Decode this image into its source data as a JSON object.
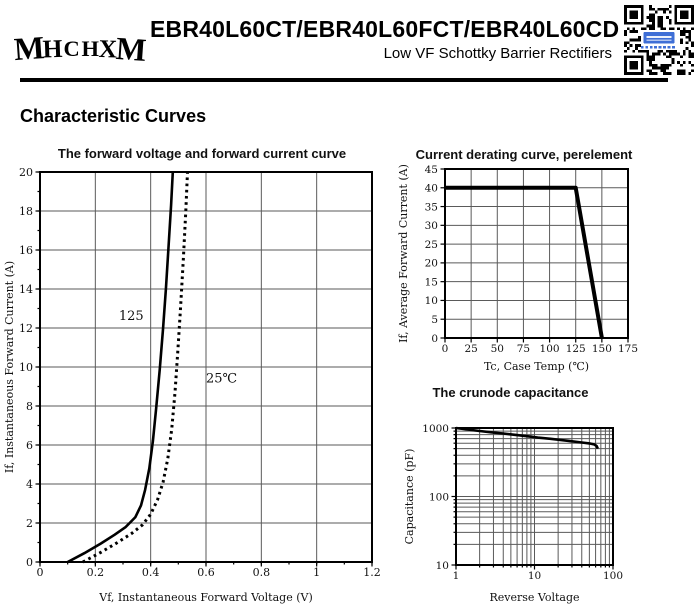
{
  "header": {
    "logo_text": "MHCHXM",
    "title": "EBR40L60CT/EBR40L60FCT/EBR40L60CD",
    "subtitle": "Low VF Schottky Barrier Rectifiers"
  },
  "section_title": "Characteristic Curves",
  "colors": {
    "text": "#111111",
    "grid": "#5a5a5a",
    "curve": "#000000",
    "qr_logo_blue": "#3f6fd6"
  },
  "chart_data": [
    {
      "id": "fwd",
      "type": "line",
      "title": "The forward voltage and forward current curve",
      "xlabel": "Vf, Instantaneous Forward Voltage (V)",
      "ylabel": "If, Instantaneous Forward Current (A)",
      "xscale": "linear",
      "yscale": "linear",
      "xlim": [
        0,
        1.2
      ],
      "ylim": [
        0,
        20
      ],
      "xticks": [
        0,
        0.2,
        0.4,
        0.6,
        0.8,
        1,
        1.2
      ],
      "xtick_labels": [
        "0",
        "0.2",
        "0.4",
        "0.6",
        "0.8",
        "1",
        "1.2"
      ],
      "yticks": [
        0,
        2,
        4,
        6,
        8,
        10,
        12,
        14,
        16,
        18,
        20
      ],
      "ytick_labels": [
        "0",
        "2",
        "4",
        "6",
        "8",
        "10",
        "12",
        "14",
        "16",
        "18",
        "20"
      ],
      "grid": true,
      "legend_position": "inline-annotations",
      "series": [
        {
          "name": "125",
          "style": "solid",
          "points": [
            [
              0.1,
              0
            ],
            [
              0.16,
              0.45
            ],
            [
              0.22,
              0.95
            ],
            [
              0.27,
              1.4
            ],
            [
              0.31,
              1.8
            ],
            [
              0.345,
              2.3
            ],
            [
              0.365,
              2.9
            ],
            [
              0.38,
              3.7
            ],
            [
              0.395,
              4.8
            ],
            [
              0.408,
              6.2
            ],
            [
              0.42,
              7.9
            ],
            [
              0.433,
              9.9
            ],
            [
              0.445,
              12
            ],
            [
              0.455,
              14
            ],
            [
              0.465,
              16.3
            ],
            [
              0.474,
              18.3
            ],
            [
              0.48,
              20
            ]
          ]
        },
        {
          "name": "25℃",
          "style": "dashed",
          "points": [
            [
              0.155,
              0
            ],
            [
              0.22,
              0.5
            ],
            [
              0.28,
              1.0
            ],
            [
              0.33,
              1.45
            ],
            [
              0.37,
              1.9
            ],
            [
              0.4,
              2.45
            ],
            [
              0.425,
              3.2
            ],
            [
              0.445,
              4.1
            ],
            [
              0.462,
              5.3
            ],
            [
              0.476,
              6.8
            ],
            [
              0.488,
              8.7
            ],
            [
              0.498,
              10.8
            ],
            [
              0.508,
              13
            ],
            [
              0.518,
              15.5
            ],
            [
              0.527,
              18
            ],
            [
              0.533,
              20
            ]
          ]
        }
      ],
      "annotations": [
        {
          "text": "125",
          "x": 0.33,
          "y": 12.4,
          "anchor": "middle"
        },
        {
          "text": "25℃",
          "x": 0.6,
          "y": 9.2,
          "anchor": "start"
        }
      ]
    },
    {
      "id": "derating",
      "type": "line",
      "title": "Current derating curve, perelement",
      "xlabel": "Tc, Case Temp (℃)",
      "ylabel": "If, Average Forward Current (A)",
      "xscale": "linear",
      "yscale": "linear",
      "xlim": [
        0,
        175
      ],
      "ylim": [
        0,
        45
      ],
      "xticks": [
        0,
        25,
        50,
        75,
        100,
        125,
        150,
        175
      ],
      "xtick_labels": [
        "0",
        "25",
        "50",
        "75",
        "100",
        "125",
        "150",
        "175"
      ],
      "yticks": [
        0,
        5,
        10,
        15,
        20,
        25,
        30,
        35,
        40,
        45
      ],
      "ytick_labels": [
        "0",
        "5",
        "10",
        "15",
        "20",
        "25",
        "30",
        "35",
        "40",
        "45"
      ],
      "grid": true,
      "series": [
        {
          "name": "derating",
          "style": "thick",
          "points": [
            [
              0,
              40
            ],
            [
              125,
              40
            ],
            [
              150,
              0
            ]
          ]
        }
      ],
      "annotations": []
    },
    {
      "id": "cap",
      "type": "line",
      "title": "The crunode capacitance",
      "xlabel": "Reverse Voltage",
      "ylabel": "Capacitance (pF)",
      "xscale": "log",
      "yscale": "log",
      "xlim": [
        1,
        100
      ],
      "ylim": [
        10,
        1000
      ],
      "xticks": [
        1,
        10,
        100
      ],
      "xtick_labels": [
        "1",
        "10",
        "100"
      ],
      "yticks": [
        10,
        100,
        1000
      ],
      "ytick_labels": [
        "10",
        "100",
        "1000"
      ],
      "grid": true,
      "series": [
        {
          "name": "capacitance",
          "style": "solid",
          "points": [
            [
              1,
              1000
            ],
            [
              1.4,
              950
            ],
            [
              2,
              905
            ],
            [
              2.8,
              865
            ],
            [
              4,
              830
            ],
            [
              5.6,
              795
            ],
            [
              8,
              760
            ],
            [
              11,
              725
            ],
            [
              16,
              695
            ],
            [
              22,
              665
            ],
            [
              30,
              640
            ],
            [
              40,
              615
            ],
            [
              50,
              595
            ],
            [
              58,
              575
            ],
            [
              62,
              545
            ],
            [
              64,
              500
            ]
          ]
        }
      ],
      "annotations": []
    }
  ]
}
